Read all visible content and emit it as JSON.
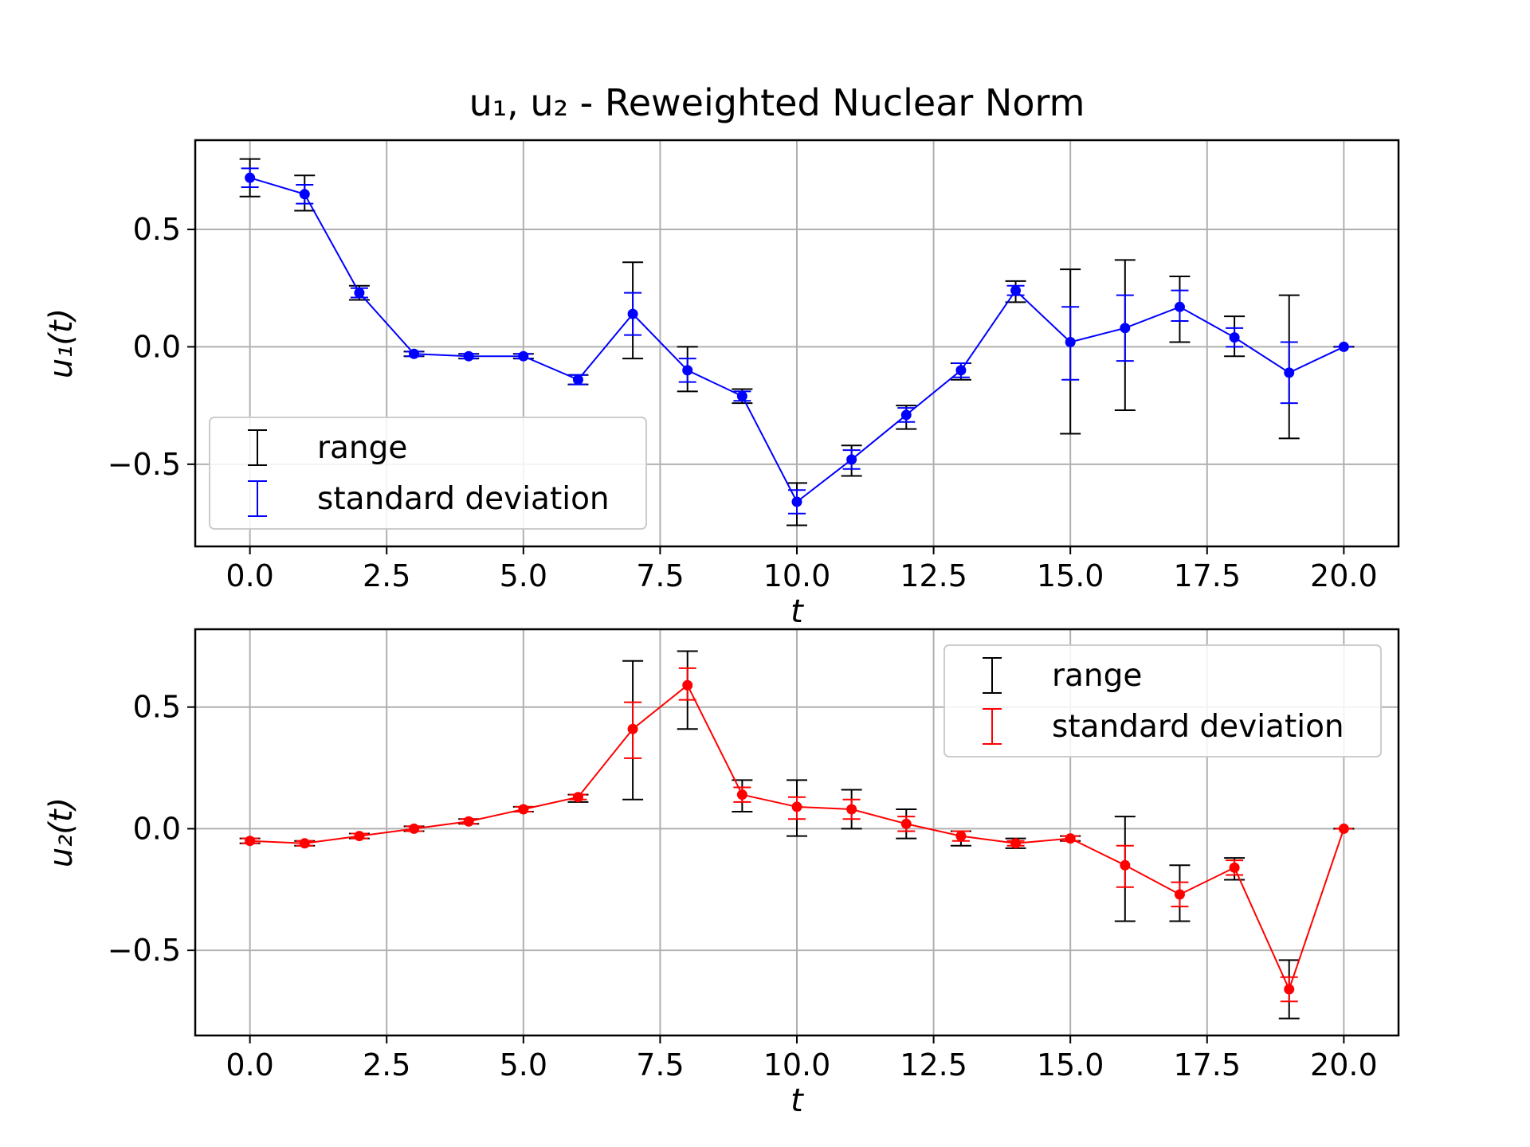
{
  "title": "u₁, u₂ - Reweighted Nuclear Norm",
  "chart_data": [
    {
      "type": "line",
      "name": "u1",
      "ylabel": "u₁(t)",
      "xlabel": "t",
      "xlim": [
        -1,
        21
      ],
      "ylim": [
        -0.85,
        0.88
      ],
      "x_ticks": [
        0.0,
        2.5,
        5.0,
        7.5,
        10.0,
        12.5,
        15.0,
        17.5,
        20.0
      ],
      "x_tick_labels": [
        "0.0",
        "2.5",
        "5.0",
        "7.5",
        "10.0",
        "12.5",
        "15.0",
        "17.5",
        "20.0"
      ],
      "y_ticks": [
        -0.5,
        0.0,
        0.5
      ],
      "y_tick_labels": [
        "−0.5",
        "0.0",
        "0.5"
      ],
      "grid": true,
      "legend_position": "lower-left",
      "legend": [
        "range",
        "standard deviation"
      ],
      "color": "#0000ff",
      "range_color": "#000000",
      "x": [
        0,
        1,
        2,
        3,
        4,
        5,
        6,
        7,
        8,
        9,
        10,
        11,
        12,
        13,
        14,
        15,
        16,
        17,
        18,
        19,
        20
      ],
      "mean": [
        0.72,
        0.65,
        0.23,
        -0.03,
        -0.04,
        -0.04,
        -0.14,
        0.14,
        -0.1,
        -0.21,
        -0.66,
        -0.48,
        -0.29,
        -0.1,
        0.24,
        0.02,
        0.08,
        0.17,
        0.04,
        -0.11,
        0.0
      ],
      "std_low": [
        0.68,
        0.61,
        0.21,
        -0.04,
        -0.05,
        -0.05,
        -0.16,
        0.05,
        -0.15,
        -0.23,
        -0.71,
        -0.52,
        -0.32,
        -0.13,
        0.22,
        -0.14,
        -0.06,
        0.11,
        0.0,
        -0.24,
        0.0
      ],
      "std_high": [
        0.76,
        0.69,
        0.25,
        -0.02,
        -0.03,
        -0.03,
        -0.12,
        0.23,
        -0.05,
        -0.19,
        -0.61,
        -0.44,
        -0.26,
        -0.07,
        0.26,
        0.17,
        0.22,
        0.24,
        0.08,
        0.02,
        0.0
      ],
      "range_low": [
        0.64,
        0.58,
        0.2,
        -0.04,
        -0.05,
        -0.05,
        -0.16,
        -0.05,
        -0.19,
        -0.24,
        -0.76,
        -0.55,
        -0.35,
        -0.14,
        0.19,
        -0.37,
        -0.27,
        0.02,
        -0.04,
        -0.39,
        0.0
      ],
      "range_high": [
        0.8,
        0.73,
        0.26,
        -0.02,
        -0.03,
        -0.03,
        -0.12,
        0.36,
        0.0,
        -0.18,
        -0.58,
        -0.42,
        -0.25,
        -0.07,
        0.28,
        0.33,
        0.37,
        0.3,
        0.13,
        0.22,
        0.0
      ]
    },
    {
      "type": "line",
      "name": "u2",
      "ylabel": "u₂(t)",
      "xlabel": "t",
      "xlim": [
        -1,
        21
      ],
      "ylim": [
        -0.85,
        0.82
      ],
      "x_ticks": [
        0.0,
        2.5,
        5.0,
        7.5,
        10.0,
        12.5,
        15.0,
        17.5,
        20.0
      ],
      "x_tick_labels": [
        "0.0",
        "2.5",
        "5.0",
        "7.5",
        "10.0",
        "12.5",
        "15.0",
        "17.5",
        "20.0"
      ],
      "y_ticks": [
        -0.5,
        0.0,
        0.5
      ],
      "y_tick_labels": [
        "−0.5",
        "0.0",
        "0.5"
      ],
      "grid": true,
      "legend_position": "upper-right",
      "legend": [
        "range",
        "standard deviation"
      ],
      "color": "#ff0000",
      "range_color": "#000000",
      "x": [
        0,
        1,
        2,
        3,
        4,
        5,
        6,
        7,
        8,
        9,
        10,
        11,
        12,
        13,
        14,
        15,
        16,
        17,
        18,
        19,
        20
      ],
      "mean": [
        -0.05,
        -0.06,
        -0.03,
        0.0,
        0.03,
        0.08,
        0.13,
        0.41,
        0.59,
        0.14,
        0.09,
        0.08,
        0.02,
        -0.03,
        -0.06,
        -0.04,
        -0.15,
        -0.27,
        -0.16,
        -0.66,
        0.0
      ],
      "std_low": [
        -0.06,
        -0.07,
        -0.04,
        -0.01,
        0.02,
        0.07,
        0.12,
        0.29,
        0.53,
        0.11,
        0.04,
        0.04,
        -0.01,
        -0.05,
        -0.07,
        -0.05,
        -0.24,
        -0.32,
        -0.19,
        -0.71,
        0.0
      ],
      "std_high": [
        -0.04,
        -0.05,
        -0.02,
        0.01,
        0.04,
        0.09,
        0.14,
        0.52,
        0.66,
        0.17,
        0.13,
        0.12,
        0.05,
        -0.01,
        -0.05,
        -0.03,
        -0.07,
        -0.22,
        -0.13,
        -0.61,
        0.0
      ],
      "range_low": [
        -0.06,
        -0.07,
        -0.04,
        -0.01,
        0.02,
        0.07,
        0.11,
        0.12,
        0.41,
        0.07,
        -0.03,
        0.0,
        -0.04,
        -0.07,
        -0.08,
        -0.05,
        -0.38,
        -0.38,
        -0.21,
        -0.78,
        0.0
      ],
      "range_high": [
        -0.04,
        -0.05,
        -0.02,
        0.01,
        0.04,
        0.09,
        0.14,
        0.69,
        0.73,
        0.2,
        0.2,
        0.16,
        0.08,
        -0.01,
        -0.04,
        -0.03,
        0.05,
        -0.15,
        -0.12,
        -0.54,
        0.0
      ]
    }
  ]
}
